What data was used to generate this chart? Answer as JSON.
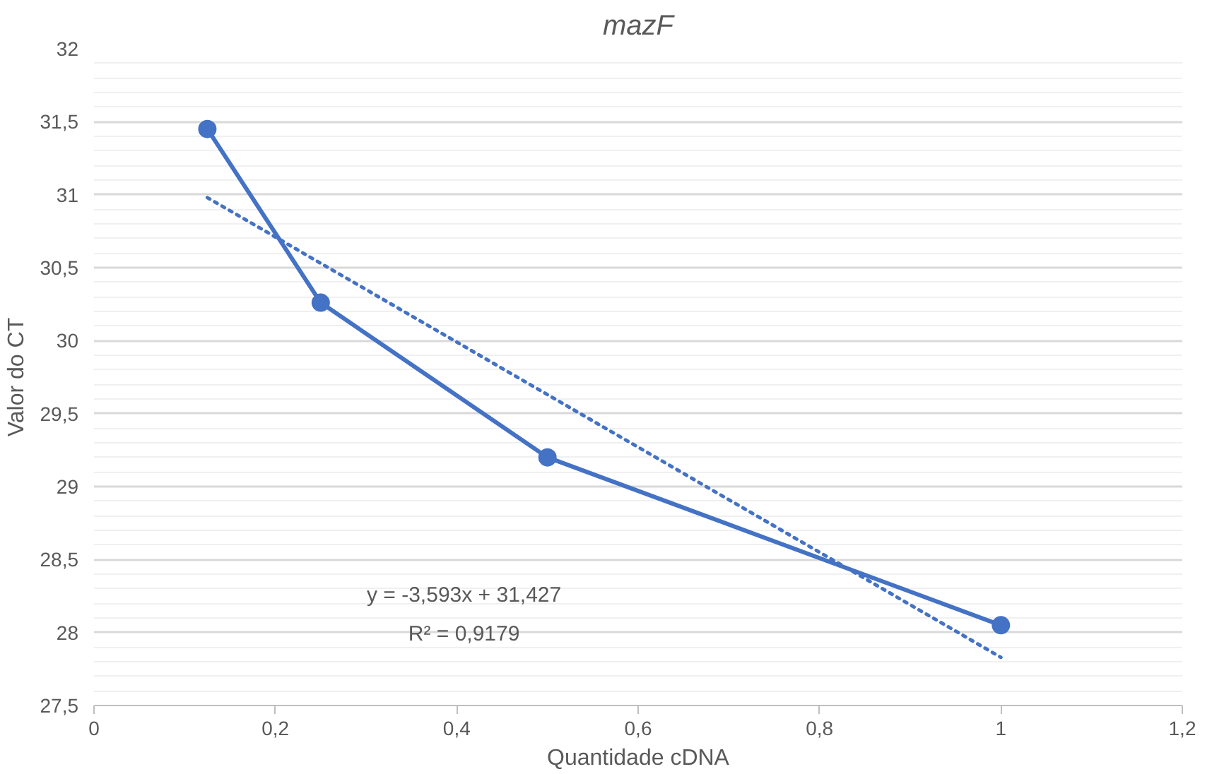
{
  "chart_data": {
    "type": "line",
    "title": "mazF",
    "xlabel": "Quantidade cDNA",
    "ylabel": "Valor do CT",
    "xlim": [
      0,
      1.2
    ],
    "ylim": [
      27.5,
      32
    ],
    "xticks": [
      0,
      {
        "value": 0.2,
        "label": "0,2"
      },
      {
        "value": 0.4,
        "label": "0,4"
      },
      {
        "value": 0.6,
        "label": "0,6"
      },
      {
        "value": 0.8,
        "label": "0,8"
      },
      1,
      {
        "value": 1.2,
        "label": "1,2"
      }
    ],
    "yticks": [
      {
        "value": 27.5,
        "label": "27,5"
      },
      28,
      {
        "value": 28.5,
        "label": "28,5"
      },
      29,
      {
        "value": 29.5,
        "label": "29,5"
      },
      30,
      {
        "value": 30.5,
        "label": "30,5"
      },
      31,
      {
        "value": 31.5,
        "label": "31,5"
      },
      32
    ],
    "grid": "y",
    "series": [
      {
        "color": "#4472c4",
        "x": [
          0.125,
          0.25,
          0.5,
          1
        ],
        "values": [
          31.45,
          30.26,
          29.2,
          28.05
        ],
        "marker": "circle",
        "line_style": "solid"
      },
      {
        "color": "#4472c4",
        "x": [
          0.125,
          1
        ],
        "values": [
          30.98,
          27.83
        ],
        "marker": "none",
        "line_style": "dotted"
      }
    ],
    "annotations": [
      "y = -3,593x + 31,427",
      "R² = 0,9179"
    ]
  }
}
